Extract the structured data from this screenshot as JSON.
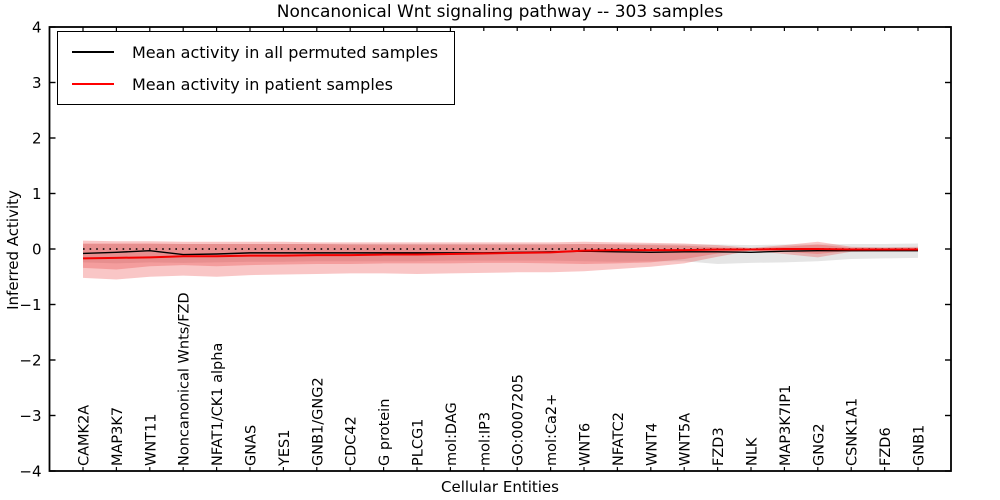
{
  "title": "Noncanonical Wnt signaling pathway -- 303 samples",
  "legend": {
    "items": [
      {
        "label": "Mean activity in all permuted samples",
        "color": "#000000"
      },
      {
        "label": "Mean activity in patient samples",
        "color": "#ff0000"
      }
    ]
  },
  "axes": {
    "ylabel": "Inferred Activity",
    "xlabel": "Cellular Entities",
    "yticks": [
      4,
      3,
      2,
      1,
      0,
      -1,
      -2,
      -3,
      -4
    ],
    "ylim": [
      -4,
      4
    ]
  },
  "colors": {
    "permuted_line": "#000000",
    "patient_line": "#f40000",
    "permuted_band": "rgba(0,0,0,0.10)",
    "patient_band": "rgba(235,50,50,0.28)",
    "zero_line": "#000000",
    "frame": "#000000"
  },
  "chart_data": {
    "type": "line",
    "title": "Noncanonical Wnt signaling pathway -- 303 samples",
    "xlabel": "Cellular Entities",
    "ylabel": "Inferred Activity",
    "ylim": [
      -4,
      4
    ],
    "grid": false,
    "legend_position": "upper left",
    "zero_reference_line": {
      "y": 0,
      "style": "dotted"
    },
    "categories": [
      "CAMK2A",
      "MAP3K7",
      "WNT11",
      "Noncanonical Wnts/FZD",
      "NFAT1/CK1 alpha",
      "GNAS",
      "YES1",
      "GNB1/GNG2",
      "CDC42",
      "G protein",
      "PLCG1",
      "mol:DAG",
      "mol:IP3",
      "GO:0007205",
      "mol:Ca2+",
      "WNT6",
      "NFATC2",
      "WNT4",
      "WNT5A",
      "FZD3",
      "NLK",
      "MAP3K7IP1",
      "GNG2",
      "CSNK1A1",
      "FZD6",
      "GNB1"
    ],
    "series": [
      {
        "name": "Mean activity in all permuted samples",
        "color": "#000000",
        "width": 1.4,
        "values": [
          -0.08,
          -0.06,
          -0.03,
          -0.1,
          -0.09,
          -0.07,
          -0.07,
          -0.07,
          -0.07,
          -0.07,
          -0.07,
          -0.07,
          -0.07,
          -0.06,
          -0.05,
          -0.04,
          -0.05,
          -0.06,
          -0.05,
          -0.05,
          -0.06,
          -0.04,
          -0.03,
          -0.03,
          -0.03,
          -0.03
        ]
      },
      {
        "name": "Mean activity in patient samples",
        "color": "#f40000",
        "width": 2,
        "values": [
          -0.17,
          -0.16,
          -0.15,
          -0.13,
          -0.13,
          -0.12,
          -0.12,
          -0.11,
          -0.11,
          -0.1,
          -0.1,
          -0.09,
          -0.08,
          -0.07,
          -0.06,
          -0.03,
          -0.02,
          -0.02,
          -0.02,
          -0.01,
          -0.01,
          0.0,
          0.0,
          -0.01,
          -0.01,
          -0.01
        ]
      }
    ],
    "bands": [
      {
        "name": "permuted-range",
        "fill": "rgba(0,0,0,0.10)",
        "high": [
          0.09,
          0.09,
          0.09,
          0.09,
          0.09,
          0.09,
          0.09,
          0.09,
          0.09,
          0.09,
          0.09,
          0.09,
          0.09,
          0.09,
          0.09,
          0.09,
          0.09,
          0.09,
          0.08,
          0.08,
          0.07,
          0.08,
          0.08,
          0.09,
          0.09,
          0.1
        ],
        "low": [
          -0.24,
          -0.26,
          -0.24,
          -0.25,
          -0.24,
          -0.23,
          -0.23,
          -0.22,
          -0.22,
          -0.22,
          -0.22,
          -0.21,
          -0.21,
          -0.21,
          -0.21,
          -0.22,
          -0.23,
          -0.22,
          -0.22,
          -0.27,
          -0.25,
          -0.24,
          -0.22,
          -0.18,
          -0.17,
          -0.16
        ]
      },
      {
        "name": "patient-range-outer",
        "fill": "rgba(235,50,50,0.28)",
        "high": [
          0.15,
          0.14,
          0.14,
          0.13,
          0.13,
          0.13,
          0.13,
          0.12,
          0.12,
          0.12,
          0.12,
          0.12,
          0.12,
          0.12,
          0.12,
          0.13,
          0.12,
          0.11,
          0.1,
          0.07,
          0.02,
          0.07,
          0.13,
          0.04,
          0.03,
          0.04
        ],
        "low": [
          -0.52,
          -0.55,
          -0.5,
          -0.48,
          -0.5,
          -0.47,
          -0.46,
          -0.45,
          -0.44,
          -0.44,
          -0.45,
          -0.44,
          -0.43,
          -0.42,
          -0.42,
          -0.4,
          -0.36,
          -0.32,
          -0.26,
          -0.14,
          -0.03,
          -0.09,
          -0.15,
          -0.05,
          -0.04,
          -0.04
        ]
      },
      {
        "name": "patient-range-inner",
        "fill": "rgba(235,50,50,0.28)",
        "high": [
          0.1,
          0.1,
          0.1,
          0.09,
          0.09,
          0.09,
          0.09,
          0.09,
          0.08,
          0.08,
          0.08,
          0.08,
          0.08,
          0.08,
          0.08,
          0.09,
          0.08,
          0.07,
          0.06,
          0.03,
          0.01,
          0.04,
          0.08,
          0.02,
          0.02,
          0.02
        ],
        "low": [
          -0.34,
          -0.37,
          -0.31,
          -0.29,
          -0.31,
          -0.29,
          -0.28,
          -0.27,
          -0.27,
          -0.26,
          -0.26,
          -0.26,
          -0.25,
          -0.25,
          -0.26,
          -0.27,
          -0.26,
          -0.24,
          -0.18,
          -0.08,
          -0.02,
          -0.05,
          -0.09,
          -0.03,
          -0.03,
          -0.03
        ]
      }
    ]
  }
}
